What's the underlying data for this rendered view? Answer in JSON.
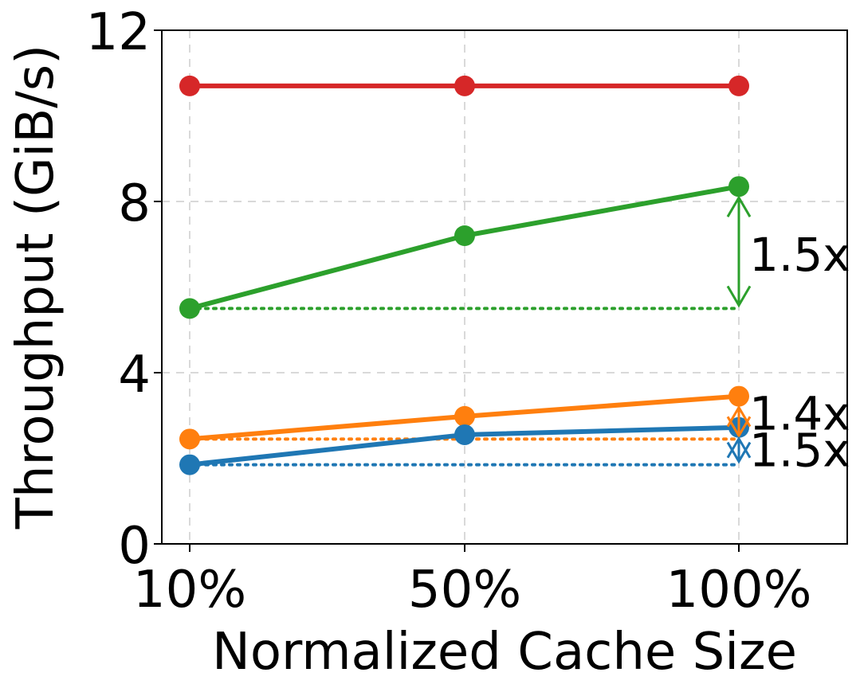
{
  "chart_data": {
    "type": "line",
    "title": "",
    "xlabel": "Normalized Cache Size",
    "ylabel": "Throughput (GiB/s)",
    "categories": [
      "10%",
      "50%",
      "100%"
    ],
    "ylim": [
      0,
      12
    ],
    "yticks": [
      0,
      4,
      8,
      12
    ],
    "grid": true,
    "series": [
      {
        "name": "red",
        "color": "#d62728",
        "values": [
          10.7,
          10.7,
          10.7
        ]
      },
      {
        "name": "green",
        "color": "#2ca02c",
        "values": [
          5.5,
          7.2,
          8.35
        ]
      },
      {
        "name": "orange",
        "color": "#ff7f0e",
        "values": [
          2.45,
          2.98,
          3.45
        ]
      },
      {
        "name": "blue",
        "color": "#1f77b4",
        "values": [
          1.85,
          2.55,
          2.72
        ]
      }
    ],
    "annotations": [
      {
        "series": "green",
        "text": "1.5x",
        "baseline": 5.5,
        "top": 8.35
      },
      {
        "series": "orange",
        "text": "1.4x",
        "baseline": 2.45,
        "top": 3.45
      },
      {
        "series": "blue",
        "text": "1.5x",
        "baseline": 1.85,
        "top": 2.72
      }
    ]
  }
}
